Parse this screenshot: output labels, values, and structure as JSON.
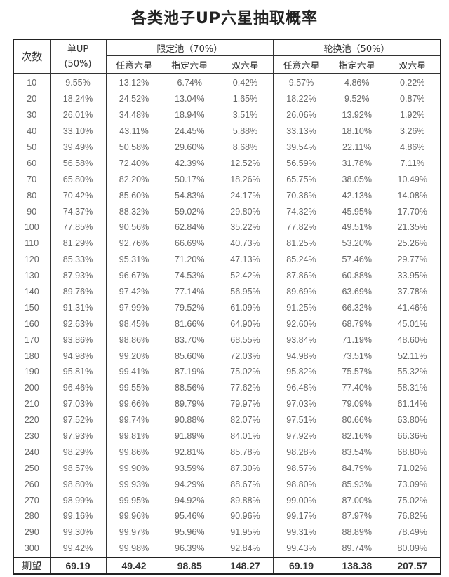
{
  "title": "各类池子UP六星抽取概率",
  "header": {
    "count": "次数",
    "single_up": "单UP",
    "single_up_rate": "(50%)",
    "limited_pool": "限定池（70%）",
    "rotation_pool": "轮换池（50%）",
    "sub": [
      "任意六星",
      "指定六星",
      "双六星"
    ]
  },
  "rows": [
    [
      "10",
      "9.55%",
      "13.12%",
      "6.74%",
      "0.42%",
      "9.57%",
      "4.86%",
      "0.22%"
    ],
    [
      "20",
      "18.24%",
      "24.52%",
      "13.04%",
      "1.65%",
      "18.22%",
      "9.52%",
      "0.87%"
    ],
    [
      "30",
      "26.01%",
      "34.48%",
      "18.94%",
      "3.51%",
      "26.06%",
      "13.92%",
      "1.92%"
    ],
    [
      "40",
      "33.10%",
      "43.11%",
      "24.45%",
      "5.88%",
      "33.13%",
      "18.10%",
      "3.26%"
    ],
    [
      "50",
      "39.49%",
      "50.58%",
      "29.60%",
      "8.68%",
      "39.54%",
      "22.11%",
      "4.86%"
    ],
    [
      "60",
      "56.58%",
      "72.40%",
      "42.39%",
      "12.52%",
      "56.59%",
      "31.78%",
      "7.11%"
    ],
    [
      "70",
      "65.80%",
      "82.20%",
      "50.17%",
      "18.26%",
      "65.75%",
      "38.05%",
      "10.49%"
    ],
    [
      "80",
      "70.42%",
      "85.60%",
      "54.83%",
      "24.17%",
      "70.36%",
      "42.13%",
      "14.08%"
    ],
    [
      "90",
      "74.37%",
      "88.32%",
      "59.02%",
      "29.80%",
      "74.32%",
      "45.95%",
      "17.70%"
    ],
    [
      "100",
      "77.85%",
      "90.56%",
      "62.84%",
      "35.22%",
      "77.82%",
      "49.51%",
      "21.35%"
    ],
    [
      "110",
      "81.29%",
      "92.76%",
      "66.69%",
      "40.73%",
      "81.25%",
      "53.20%",
      "25.26%"
    ],
    [
      "120",
      "85.33%",
      "95.31%",
      "71.20%",
      "47.13%",
      "85.24%",
      "57.46%",
      "29.77%"
    ],
    [
      "130",
      "87.93%",
      "96.67%",
      "74.53%",
      "52.42%",
      "87.86%",
      "60.88%",
      "33.95%"
    ],
    [
      "140",
      "89.76%",
      "97.42%",
      "77.14%",
      "56.95%",
      "89.69%",
      "63.69%",
      "37.78%"
    ],
    [
      "150",
      "91.31%",
      "97.99%",
      "79.52%",
      "61.09%",
      "91.25%",
      "66.32%",
      "41.46%"
    ],
    [
      "160",
      "92.63%",
      "98.45%",
      "81.66%",
      "64.90%",
      "92.60%",
      "68.79%",
      "45.01%"
    ],
    [
      "170",
      "93.86%",
      "98.86%",
      "83.70%",
      "68.55%",
      "93.84%",
      "71.19%",
      "48.60%"
    ],
    [
      "180",
      "94.98%",
      "99.20%",
      "85.60%",
      "72.03%",
      "94.98%",
      "73.51%",
      "52.11%"
    ],
    [
      "190",
      "95.81%",
      "99.41%",
      "87.19%",
      "75.02%",
      "95.82%",
      "75.57%",
      "55.32%"
    ],
    [
      "200",
      "96.46%",
      "99.55%",
      "88.56%",
      "77.62%",
      "96.48%",
      "77.40%",
      "58.31%"
    ],
    [
      "210",
      "97.03%",
      "99.66%",
      "89.79%",
      "79.97%",
      "97.03%",
      "79.09%",
      "61.14%"
    ],
    [
      "220",
      "97.52%",
      "99.74%",
      "90.88%",
      "82.07%",
      "97.51%",
      "80.66%",
      "63.80%"
    ],
    [
      "230",
      "97.93%",
      "99.81%",
      "91.89%",
      "84.01%",
      "97.92%",
      "82.16%",
      "66.36%"
    ],
    [
      "240",
      "98.29%",
      "99.86%",
      "92.81%",
      "85.78%",
      "98.28%",
      "83.54%",
      "68.80%"
    ],
    [
      "250",
      "98.57%",
      "99.90%",
      "93.59%",
      "87.30%",
      "98.57%",
      "84.79%",
      "71.02%"
    ],
    [
      "260",
      "98.80%",
      "99.93%",
      "94.29%",
      "88.67%",
      "98.80%",
      "85.93%",
      "73.09%"
    ],
    [
      "270",
      "98.99%",
      "99.95%",
      "94.92%",
      "89.88%",
      "99.00%",
      "87.00%",
      "75.02%"
    ],
    [
      "280",
      "99.16%",
      "99.96%",
      "95.46%",
      "90.96%",
      "99.17%",
      "87.97%",
      "76.82%"
    ],
    [
      "290",
      "99.30%",
      "99.97%",
      "95.96%",
      "91.95%",
      "99.31%",
      "88.89%",
      "78.49%"
    ],
    [
      "300",
      "99.42%",
      "99.98%",
      "96.39%",
      "92.84%",
      "99.43%",
      "89.74%",
      "80.09%"
    ]
  ],
  "footer": [
    "期望",
    "69.19",
    "49.42",
    "98.85",
    "148.27",
    "69.19",
    "138.38",
    "207.57"
  ]
}
